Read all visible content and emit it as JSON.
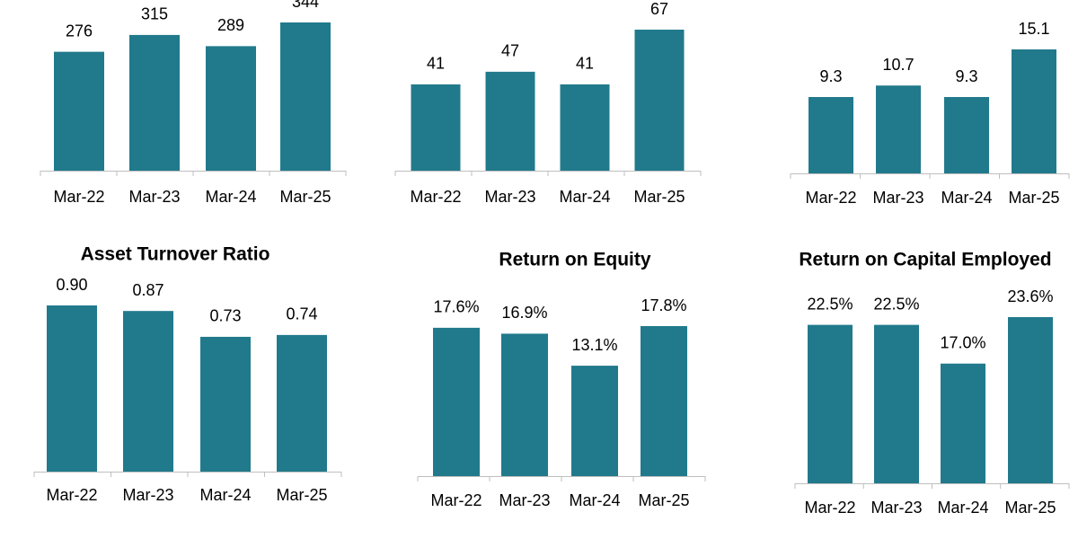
{
  "chart_data": [
    {
      "type": "bar",
      "categories": [
        "Mar-22",
        "Mar-23",
        "Mar-24",
        "Mar-25"
      ],
      "values": [
        276,
        315,
        289,
        344
      ],
      "color": "#217a8c"
    },
    {
      "type": "bar",
      "categories": [
        "Mar-22",
        "Mar-23",
        "Mar-24",
        "Mar-25"
      ],
      "values": [
        41,
        47,
        41,
        67
      ],
      "color": "#217a8c"
    },
    {
      "type": "bar",
      "categories": [
        "Mar-22",
        "Mar-23",
        "Mar-24",
        "Mar-25"
      ],
      "values": [
        9.3,
        10.7,
        9.3,
        15.1
      ],
      "color": "#217a8c"
    },
    {
      "type": "bar",
      "title": "Asset Turnover Ratio",
      "categories": [
        "Mar-22",
        "Mar-23",
        "Mar-24",
        "Mar-25"
      ],
      "values": [
        0.9,
        0.87,
        0.73,
        0.74
      ],
      "value_labels": [
        "0.90",
        "0.87",
        "0.73",
        "0.74"
      ],
      "color": "#217a8c"
    },
    {
      "type": "bar",
      "title": "Return on Equity",
      "categories": [
        "Mar-22",
        "Mar-23",
        "Mar-24",
        "Mar-25"
      ],
      "values": [
        17.6,
        16.9,
        13.1,
        17.8
      ],
      "value_labels": [
        "17.6%",
        "16.9%",
        "13.1%",
        "17.8%"
      ],
      "color": "#217a8c"
    },
    {
      "type": "bar",
      "title": "Return on Capital Employed",
      "categories": [
        "Mar-22",
        "Mar-23",
        "Mar-24",
        "Mar-25"
      ],
      "values": [
        22.5,
        22.5,
        17.0,
        23.6
      ],
      "value_labels": [
        "22.5%",
        "22.5%",
        "17.0%",
        "23.6%"
      ],
      "color": "#217a8c"
    }
  ]
}
